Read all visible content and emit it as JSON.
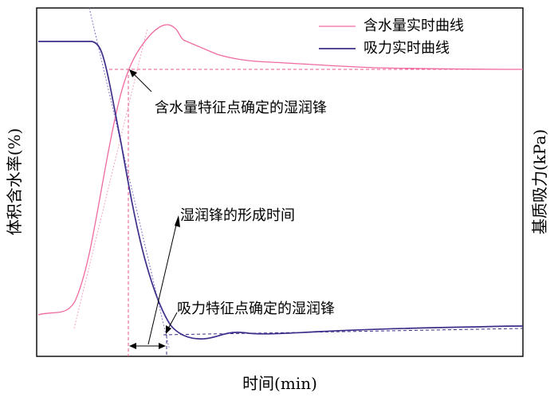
{
  "chart_data": {
    "type": "line",
    "title": "",
    "xlabel": "时间(min)",
    "ylabel_left": "体积含水率(%)",
    "ylabel_right": "基质吸力(kPa)",
    "grid": false,
    "legend_placement": "top-right",
    "x_ticks_shown": false,
    "y_ticks_shown": false,
    "series": [
      {
        "name": "含水量实时曲线",
        "color": "#f06aa0",
        "axis": "left"
      },
      {
        "name": "吸力实时曲线",
        "color": "#3b2f8a",
        "axis": "right"
      }
    ],
    "annotations": [
      {
        "id": "moisture_front",
        "text": "含水量特征点确定的湿润锋"
      },
      {
        "id": "formation_time",
        "text": "湿润锋的形成时间"
      },
      {
        "id": "suction_front",
        "text": "吸力特征点确定的湿润锋"
      }
    ]
  }
}
